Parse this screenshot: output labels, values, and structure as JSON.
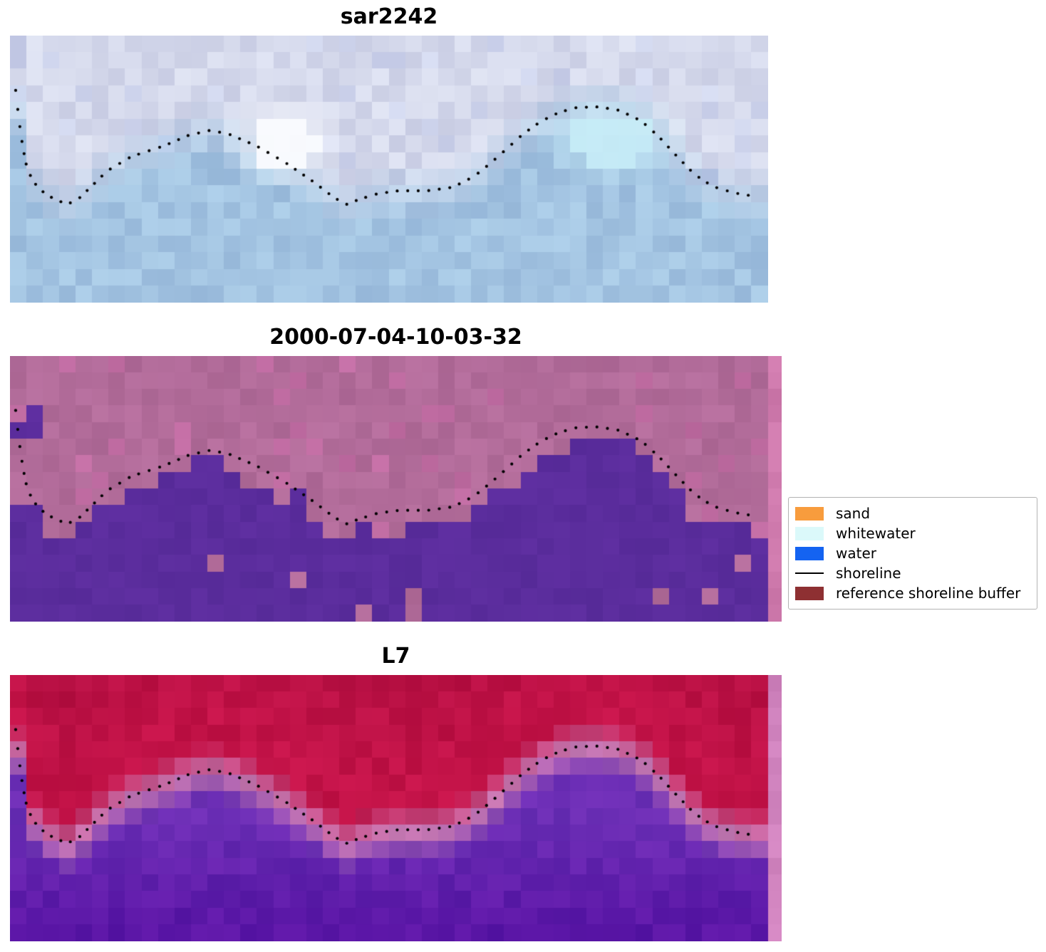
{
  "figure": {
    "background_color": "#ffffff",
    "panels": {
      "sar": {
        "title": "sar2242"
      },
      "classified": {
        "title": "2000-07-04-10-03-32"
      },
      "l7": {
        "title": "L7"
      }
    },
    "legend": {
      "items": [
        {
          "label": "sand",
          "swatch": "patch",
          "color": "#F89C3D"
        },
        {
          "label": "whitewater",
          "swatch": "patch",
          "color": "#DBF9FA"
        },
        {
          "label": "water",
          "swatch": "patch",
          "color": "#1463F1"
        },
        {
          "label": "shoreline",
          "swatch": "line",
          "color": "#000000"
        },
        {
          "label": "reference shoreline buffer",
          "swatch": "patch",
          "color": "#8E3032"
        }
      ]
    }
  },
  "chart_data": {
    "type": "heatmap",
    "panel_titles": [
      "sar2242",
      "2000-07-04-10-03-32",
      "L7"
    ],
    "legend_entries": [
      "sand",
      "whitewater",
      "water",
      "shoreline",
      "reference shoreline buffer"
    ],
    "legend_position": "center right",
    "shoreline_normalized": [
      [
        0.0075,
        0.205
      ],
      [
        0.01,
        0.27
      ],
      [
        0.013,
        0.34
      ],
      [
        0.017,
        0.42
      ],
      [
        0.022,
        0.49
      ],
      [
        0.03,
        0.545
      ],
      [
        0.042,
        0.582
      ],
      [
        0.058,
        0.612
      ],
      [
        0.076,
        0.632
      ],
      [
        0.092,
        0.607
      ],
      [
        0.107,
        0.566
      ],
      [
        0.128,
        0.507
      ],
      [
        0.16,
        0.453
      ],
      [
        0.203,
        0.413
      ],
      [
        0.236,
        0.373
      ],
      [
        0.264,
        0.355
      ],
      [
        0.288,
        0.368
      ],
      [
        0.325,
        0.413
      ],
      [
        0.363,
        0.475
      ],
      [
        0.4,
        0.547
      ],
      [
        0.428,
        0.608
      ],
      [
        0.444,
        0.632
      ],
      [
        0.461,
        0.613
      ],
      [
        0.485,
        0.592
      ],
      [
        0.513,
        0.581
      ],
      [
        0.551,
        0.581
      ],
      [
        0.584,
        0.568
      ],
      [
        0.612,
        0.528
      ],
      [
        0.635,
        0.475
      ],
      [
        0.654,
        0.427
      ],
      [
        0.677,
        0.368
      ],
      [
        0.701,
        0.32
      ],
      [
        0.724,
        0.288
      ],
      [
        0.748,
        0.269
      ],
      [
        0.776,
        0.267
      ],
      [
        0.804,
        0.28
      ],
      [
        0.833,
        0.32
      ],
      [
        0.856,
        0.379
      ],
      [
        0.88,
        0.453
      ],
      [
        0.903,
        0.52
      ],
      [
        0.927,
        0.565
      ],
      [
        0.955,
        0.589
      ],
      [
        0.978,
        0.6
      ]
    ]
  },
  "render": {
    "grid": {
      "cols": 46,
      "rows": 16
    },
    "inner_width": 1064,
    "shoreline_color": "#000000",
    "dot_radius": 2.1,
    "dot_spacing": 14,
    "sar": {
      "land": "#D5D9EC",
      "water": "#A3C4E2",
      "bright_patch": "#FBFCFF",
      "cyan_patch": "#C9EFF9"
    },
    "classified": {
      "land": "#B26C9A",
      "water": "#5B2D9D",
      "edge_strip": "#CE79AC",
      "extra_water": [
        [
          0,
          4
        ],
        [
          1,
          4
        ],
        [
          1,
          3
        ]
      ],
      "land_speckles": [
        [
          12,
          12
        ],
        [
          17,
          13
        ],
        [
          23,
          10
        ],
        [
          21,
          15
        ],
        [
          24,
          14
        ],
        [
          24,
          15
        ],
        [
          39,
          14
        ],
        [
          42,
          14
        ],
        [
          44,
          12
        ]
      ]
    },
    "l7": {
      "red": "#C31348",
      "pink": "#C678B2",
      "purple_top": "#6B2EB5",
      "purple_bottom": "#5A16A6",
      "edge_strip": "#D083BE"
    }
  }
}
